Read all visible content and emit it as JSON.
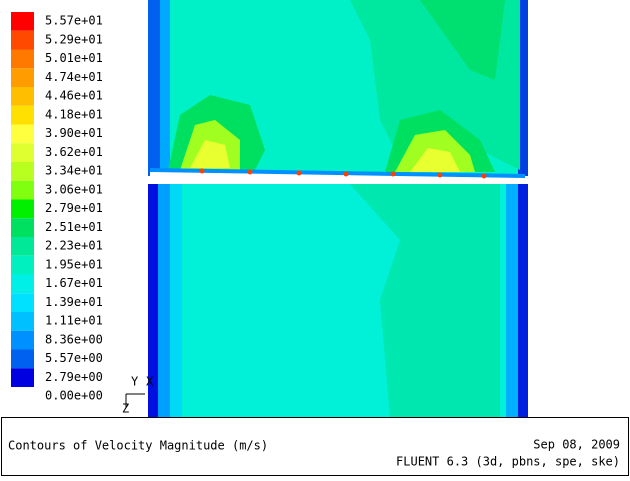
{
  "legend": {
    "labels": [
      "5.57e+01",
      "5.29e+01",
      "5.01e+01",
      "4.74e+01",
      "4.46e+01",
      "4.18e+01",
      "3.90e+01",
      "3.62e+01",
      "3.34e+01",
      "3.06e+01",
      "2.79e+01",
      "2.51e+01",
      "2.23e+01",
      "1.95e+01",
      "1.67e+01",
      "1.39e+01",
      "1.11e+01",
      "8.36e+00",
      "5.57e+00",
      "2.79e+00",
      "0.00e+00"
    ],
    "colors": [
      "#ff0000",
      "#ff4800",
      "#ff7800",
      "#ff9c00",
      "#ffbe00",
      "#ffe000",
      "#ffff40",
      "#e0ff30",
      "#b8ff20",
      "#80ff10",
      "#00f000",
      "#00e060",
      "#00e898",
      "#00f0c0",
      "#00f0e8",
      "#00e0ff",
      "#00c0ff",
      "#0090ff",
      "#0060f0",
      "#0000e0"
    ]
  },
  "axes": {
    "y": "Y",
    "x": "X",
    "z": "Z"
  },
  "footer": {
    "title": "Contours of Velocity Magnitude (m/s)",
    "date": "Sep 08, 2009",
    "software": "FLUENT 6.3 (3d, pbns, spe, ske)"
  }
}
